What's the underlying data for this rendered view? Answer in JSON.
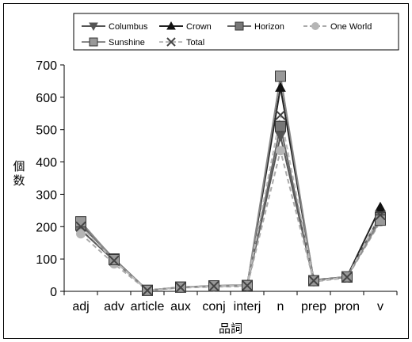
{
  "chart_data": {
    "type": "line",
    "categories": [
      "adj",
      "adv",
      "article",
      "aux",
      "conj",
      "interj",
      "n",
      "prep",
      "pron",
      "v"
    ],
    "xlabel": "品詞",
    "ylabel": "個数",
    "ylim": [
      0,
      700
    ],
    "yticks": [
      0,
      100,
      200,
      300,
      400,
      500,
      600,
      700
    ],
    "grid": false,
    "legend_placement": "top",
    "series": [
      {
        "name": "Columbus",
        "marker": "triangle-down",
        "line_color": "#555555",
        "marker_color": "#555555",
        "dash": "solid",
        "values": [
          190,
          95,
          3,
          12,
          16,
          18,
          480,
          32,
          45,
          235
        ]
      },
      {
        "name": "Crown",
        "marker": "triangle-up",
        "line_color": "#222222",
        "marker_color": "#111111",
        "dash": "solid",
        "values": [
          210,
          100,
          3,
          12,
          17,
          19,
          630,
          35,
          45,
          260
        ]
      },
      {
        "name": "Horizon",
        "marker": "square",
        "line_color": "#666666",
        "marker_color": "#777777",
        "dash": "solid",
        "values": [
          205,
          100,
          3,
          13,
          16,
          18,
          510,
          33,
          44,
          228
        ]
      },
      {
        "name": "One World",
        "marker": "circle",
        "line_color": "#aaaaaa",
        "marker_color": "#b5b5b5",
        "dash": "dashed",
        "values": [
          178,
          85,
          3,
          11,
          14,
          15,
          435,
          30,
          42,
          215
        ]
      },
      {
        "name": "Sunshine",
        "marker": "square",
        "line_color": "#888888",
        "marker_color": "#999999",
        "dash": "solid",
        "values": [
          215,
          98,
          3,
          13,
          17,
          18,
          665,
          33,
          45,
          220
        ]
      },
      {
        "name": "Total",
        "marker": "x",
        "line_color": "#bbbbbb",
        "marker_color": "#444444",
        "dash": "dashed",
        "values": [
          200,
          95,
          3,
          12,
          16,
          18,
          545,
          33,
          44,
          236
        ]
      }
    ]
  }
}
